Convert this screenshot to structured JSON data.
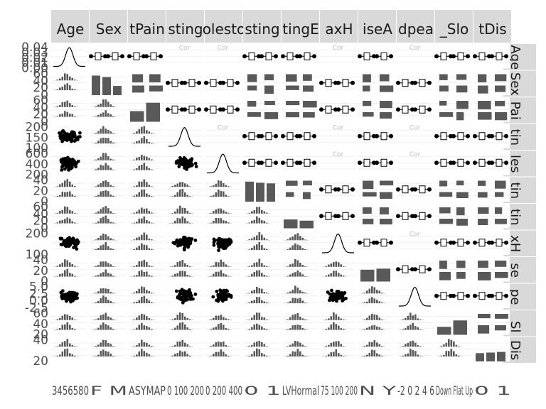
{
  "chart_data": {
    "type": "scatter",
    "description_kind": "pairs-plot-matrix",
    "variables": [
      "Age",
      "Sex",
      "ChestPainType",
      "RestingBP",
      "Cholesterol",
      "FastingBS",
      "RestingECG",
      "MaxHR",
      "ExerciseAngina",
      "Oldpeak",
      "ST_Slope",
      "HeartDisease"
    ],
    "column_strip_labels": [
      "Age",
      "Sex",
      "tPain",
      "sting",
      "olesto",
      "sting",
      "tingE",
      "axH",
      "iseA",
      "dpea",
      "_Slo",
      "tDis"
    ],
    "row_strip_labels": [
      "Age",
      "Sex",
      "Pai",
      "tin",
      "les",
      "tin",
      "tin",
      "xH",
      "se",
      "pe",
      "_Sl",
      "Dis"
    ],
    "column_kinds": [
      "num",
      "cat",
      "cat",
      "num",
      "num",
      "cat",
      "cat",
      "num",
      "cat",
      "num",
      "cat",
      "cat"
    ],
    "x_axis_tick_text": [
      "3456580",
      "F M",
      "ASYMAP",
      "0 100 200",
      "0 200 400",
      "0 1",
      "LVHormal",
      "75 100 200",
      "N Y",
      "-2 0 2 4 6",
      "Down Flat Up",
      "0 1"
    ],
    "left_axis_ticks": {
      "row_1": [
        "0.04",
        "0.03",
        "0.02",
        "0.01",
        "0.00"
      ],
      "row_2": [
        "60",
        "40",
        "20",
        "0"
      ],
      "row_3": [
        "60",
        "40",
        "20",
        "0"
      ],
      "row_4": [
        "200",
        "150",
        "100"
      ],
      "row_5": [
        "600",
        "400",
        "200"
      ],
      "row_6": [
        "40",
        "20",
        "0"
      ],
      "row_7": [
        "60",
        "40",
        "20",
        "0"
      ],
      "row_8": [
        "200",
        "100"
      ],
      "row_9": [
        "40",
        "20",
        "0"
      ],
      "row_10": [
        "5.0",
        "2.5",
        "0.0",
        "-2.5"
      ],
      "row_11": [
        "60",
        "40",
        "20"
      ],
      "row_12": [
        "40",
        "20"
      ]
    },
    "strip_fill": "#d9d9d9",
    "mark_color": "#000000",
    "bar_color": "#595959",
    "grid": true
  }
}
